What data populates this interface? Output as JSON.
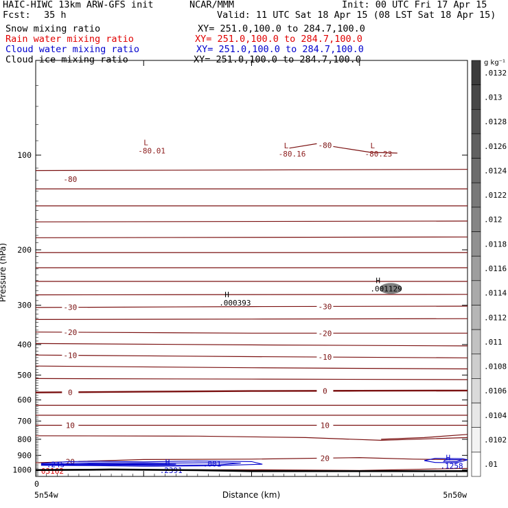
{
  "header": {
    "title": "HAIC-HIWC 13km ARW-GFS init",
    "org": "NCAR/MMM",
    "init": "Init: 00 UTC Fri 17 Apr 15",
    "fcst_label": "Fcst:",
    "fcst_value": "35 h",
    "valid": "Valid: 11 UTC Sat 18 Apr 15 (08 LST Sat 18 Apr 15)",
    "fields": [
      {
        "name": "Snow mixing ratio",
        "xy": "XY= 251.0,100.0 to 284.7,100.0",
        "color": "#000000"
      },
      {
        "name": "Rain water mixing ratio",
        "xy": "XY= 251.0,100.0 to 284.7,100.0",
        "color": "#e00000"
      },
      {
        "name": "Cloud water mixing ratio",
        "xy": "XY= 251.0,100.0 to 284.7,100.0",
        "color": "#0000cc"
      },
      {
        "name": "Cloud ice mixing ratio",
        "xy": "XY= 251.0,100.0 to 284.7,100.0",
        "color": "#000000"
      }
    ]
  },
  "chart_data": {
    "type": "line",
    "xlabel": "Distance (km)",
    "ylabel": "Pressure (hPa)",
    "x_left_label": "5n54w",
    "x_right_label": "5n50w",
    "x_ticks": [
      "0"
    ],
    "x_range": [
      0,
      4
    ],
    "y_range": [
      1050,
      50
    ],
    "y_scale": "log",
    "y_ticks": [
      100,
      200,
      300,
      400,
      500,
      600,
      700,
      800,
      900,
      1000
    ],
    "colorbar": {
      "unit": "g kg⁻¹",
      "labels": [
        ".0132",
        ".013",
        ".0128",
        ".0126",
        ".0124",
        ".0122",
        ".012",
        ".0118",
        ".0116",
        ".0114",
        ".0112",
        ".011",
        ".0108",
        ".0106",
        ".0104",
        ".0102",
        ".01"
      ]
    },
    "temperature_contours": [
      {
        "label": "-80",
        "level": -80,
        "points": [
          [
            2.35,
            95
          ],
          [
            2.6,
            92
          ],
          [
            2.85,
            95
          ],
          [
            3.1,
            98
          ],
          [
            3.35,
            98.5
          ]
        ]
      },
      {
        "label": "",
        "level": -75,
        "points": [
          [
            0,
            112
          ],
          [
            4,
            111
          ]
        ]
      },
      {
        "label": "",
        "level": -70,
        "points": [
          [
            0,
            128
          ],
          [
            4,
            128
          ]
        ]
      },
      {
        "label": "",
        "level": -65,
        "points": [
          [
            0,
            145
          ],
          [
            4,
            145
          ]
        ]
      },
      {
        "label": "",
        "level": -60,
        "points": [
          [
            0,
            163
          ],
          [
            4,
            162
          ]
        ]
      },
      {
        "label": "",
        "level": -55,
        "points": [
          [
            0,
            183
          ],
          [
            4,
            182
          ]
        ]
      },
      {
        "label": "",
        "level": -50,
        "points": [
          [
            0,
            204
          ],
          [
            4,
            204
          ]
        ]
      },
      {
        "label": "",
        "level": -45,
        "points": [
          [
            0,
            228
          ],
          [
            4,
            228
          ]
        ]
      },
      {
        "label": "",
        "level": -40,
        "points": [
          [
            0,
            252
          ],
          [
            4,
            252
          ]
        ]
      },
      {
        "label": "",
        "level": -35,
        "points": [
          [
            0,
            278
          ],
          [
            4,
            277
          ]
        ]
      },
      {
        "label": "-30",
        "level": -30,
        "points": [
          [
            0,
            305
          ],
          [
            2,
            303
          ],
          [
            4,
            302
          ]
        ]
      },
      {
        "label": "",
        "level": -25,
        "points": [
          [
            0,
            333
          ],
          [
            2,
            332
          ],
          [
            4,
            331
          ]
        ]
      },
      {
        "label": "-20",
        "level": -20,
        "points": [
          [
            0,
            365
          ],
          [
            2,
            368
          ],
          [
            4,
            368
          ]
        ]
      },
      {
        "label": "",
        "level": -15,
        "points": [
          [
            0,
            397
          ],
          [
            2,
            401
          ],
          [
            4,
            404
          ]
        ]
      },
      {
        "label": "-10",
        "level": -10,
        "points": [
          [
            0,
            432
          ],
          [
            2,
            437
          ],
          [
            4,
            441
          ]
        ]
      },
      {
        "label": "",
        "level": -5,
        "points": [
          [
            0,
            468
          ],
          [
            2,
            474
          ],
          [
            4,
            478
          ]
        ]
      },
      {
        "label": "",
        "level": -2,
        "points": [
          [
            0,
            513
          ],
          [
            2,
            515
          ],
          [
            4,
            517
          ]
        ]
      },
      {
        "label": "0",
        "level": 0,
        "points": [
          [
            0,
            568
          ],
          [
            1,
            565
          ],
          [
            2,
            562
          ],
          [
            3,
            561
          ],
          [
            4,
            560
          ]
        ]
      },
      {
        "label": "",
        "level": 2,
        "points": [
          [
            0,
            624
          ],
          [
            4,
            624
          ]
        ]
      },
      {
        "label": "",
        "level": 5,
        "points": [
          [
            0,
            671
          ],
          [
            4,
            671
          ]
        ]
      },
      {
        "label": "10",
        "level": 10,
        "points": [
          [
            0,
            722
          ],
          [
            2,
            722
          ],
          [
            4,
            722
          ]
        ]
      },
      {
        "label": "",
        "level": 12,
        "points": [
          [
            0,
            780
          ],
          [
            1.5,
            782
          ],
          [
            2.5,
            790
          ],
          [
            3.2,
            806
          ],
          [
            4,
            790
          ]
        ]
      },
      {
        "label": "",
        "level": 13,
        "points": [
          [
            3.2,
            800
          ],
          [
            3.6,
            790
          ],
          [
            4,
            772
          ]
        ]
      },
      {
        "label": "20",
        "level": 20,
        "points": [
          [
            0,
            950
          ],
          [
            1,
            928
          ],
          [
            2,
            925
          ],
          [
            3,
            915
          ],
          [
            3.5,
            925
          ],
          [
            4,
            930
          ]
        ]
      },
      {
        "label": "",
        "level": 22,
        "points": [
          [
            0,
            1005
          ],
          [
            1,
            1000
          ],
          [
            2,
            1000
          ],
          [
            3,
            1005
          ],
          [
            4,
            990
          ]
        ]
      }
    ],
    "extrema": [
      {
        "type": "L",
        "value": "-80.01",
        "x": 1.0,
        "y": 93,
        "color": "#8b1a1a"
      },
      {
        "type": "L",
        "value": "-80.16",
        "x": 2.3,
        "y": 95,
        "color": "#8b1a1a"
      },
      {
        "type": "L",
        "value": "-80.23",
        "x": 3.1,
        "y": 95,
        "color": "#8b1a1a"
      },
      {
        "type": "H",
        "value": ".001129",
        "x": 3.15,
        "y": 255,
        "color": "#000000"
      },
      {
        "type": "H",
        "value": ".000393",
        "x": 1.75,
        "y": 283,
        "color": "#000000"
      },
      {
        "type": "H",
        "value": ".2391",
        "x": 1.2,
        "y": 965,
        "color": "#0000cc"
      },
      {
        "type": "H",
        "value": ".1258",
        "x": 3.8,
        "y": 932,
        "color": "#0000cc"
      }
    ],
    "cloud_water_labels": [
      {
        "value": ".245",
        "x": 0.1,
        "y": 962
      },
      {
        "value": ".001",
        "x": 1.55,
        "y": 957
      }
    ],
    "rain_label": {
      "value": "03162",
      "x": 0.05,
      "y": 1008
    },
    "surface": [
      [
        0,
        1002
      ],
      [
        0.5,
        1000
      ],
      [
        0.7,
        998
      ],
      [
        1.5,
        1003
      ],
      [
        2,
        1010
      ],
      [
        3,
        1010
      ],
      [
        4,
        1010
      ]
    ]
  }
}
